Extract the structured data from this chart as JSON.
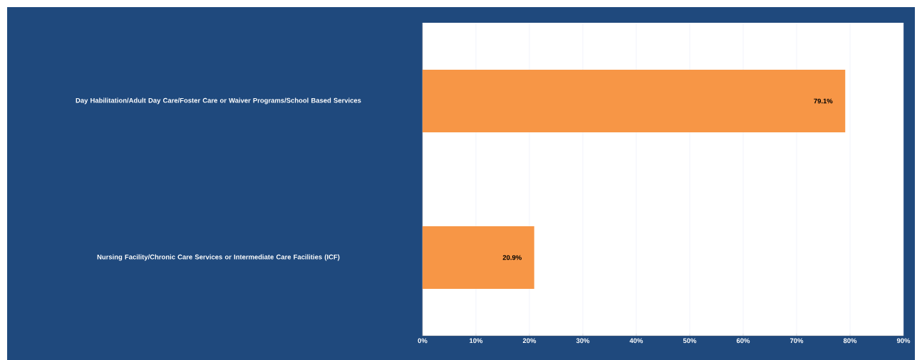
{
  "chart_data": {
    "type": "bar",
    "orientation": "horizontal",
    "categories": [
      "Day Habilitation/Adult Day Care/Foster Care or Waiver Programs/School Based Services",
      "Nursing Facility/Chronic Care Services or Intermediate Care Facilities (ICF)"
    ],
    "values": [
      79.1,
      20.9
    ],
    "value_labels": [
      "79.1%",
      "20.9%"
    ],
    "color": "#f79646",
    "xlim": [
      0,
      90
    ],
    "xticks": [
      {
        "value": 0,
        "label": "0%"
      },
      {
        "value": 10,
        "label": "10%"
      },
      {
        "value": 20,
        "label": "20%"
      },
      {
        "value": 30,
        "label": "30%"
      },
      {
        "value": 40,
        "label": "40%"
      },
      {
        "value": 50,
        "label": "50%"
      },
      {
        "value": 60,
        "label": "60%"
      },
      {
        "value": 70,
        "label": "70%"
      },
      {
        "value": 80,
        "label": "80%"
      },
      {
        "value": 90,
        "label": "90%"
      }
    ],
    "grid": "x"
  }
}
